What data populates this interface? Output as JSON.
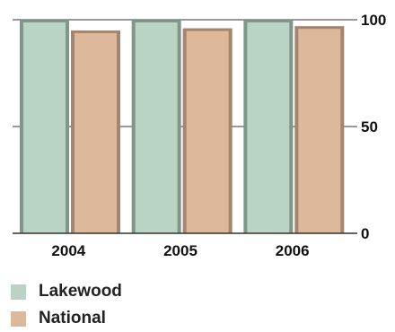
{
  "chart_data": {
    "type": "bar",
    "categories": [
      "2004",
      "2005",
      "2006"
    ],
    "series": [
      {
        "name": "Lakewood",
        "values": [
          100,
          100,
          100
        ]
      },
      {
        "name": "National",
        "values": [
          95,
          96,
          97
        ]
      }
    ],
    "ylim": [
      0,
      100
    ],
    "y_ticks": [
      "0",
      "50",
      "100"
    ],
    "y_axis_side": "right",
    "grid": true,
    "legend_position": "bottom-left",
    "colors": {
      "Lakewood": "#b9d3c5",
      "National": "#ddb89b",
      "Lakewood_shadow": "#7f968a",
      "National_shadow": "#a3866f",
      "axis": "#333333"
    }
  }
}
